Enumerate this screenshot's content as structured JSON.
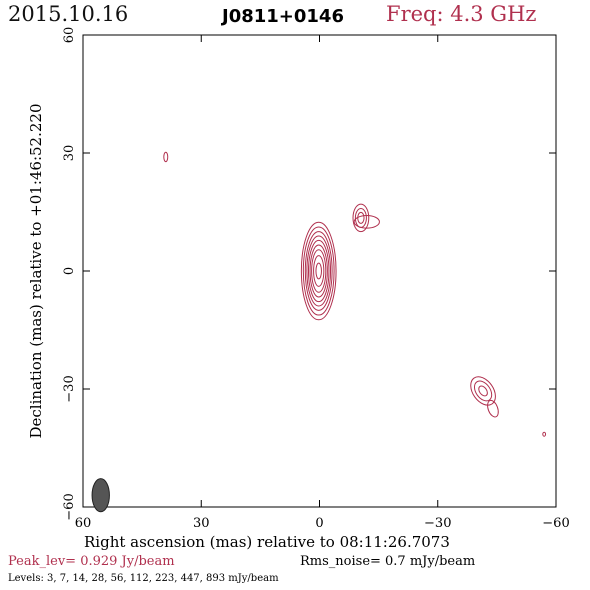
{
  "header": {
    "date": "2015.10.16",
    "source": "J0811+0146",
    "frequency": "Freq: 4.3 GHz"
  },
  "footer": {
    "peak": "Peak_lev=  0.929 Jy/beam",
    "noise": "Rms_noise=  0.7 mJy/beam",
    "levels": "Levels:   3,   7,  14,  28,  56, 112, 223, 447, 893 mJy/beam"
  },
  "colors": {
    "contour": "#b0304e",
    "beam": "#555555",
    "axes": "#000000"
  },
  "chart_data": {
    "type": "contour",
    "xlabel": "Right ascension (mas) relative to 08:11:26.7073",
    "ylabel": "Declination (mas) relative to +01:46:52.220",
    "xlim": [
      60,
      -60
    ],
    "ylim": [
      -60,
      60
    ],
    "xticks": [
      {
        "value": 60,
        "label": "60"
      },
      {
        "value": 30,
        "label": "30"
      },
      {
        "value": 0,
        "label": "0"
      },
      {
        "value": -30,
        "label": "−30"
      },
      {
        "value": -60,
        "label": "−60"
      }
    ],
    "yticks": [
      {
        "value": -60,
        "label": "−60"
      },
      {
        "value": -30,
        "label": "−30"
      },
      {
        "value": 0,
        "label": "0"
      },
      {
        "value": 30,
        "label": "30"
      },
      {
        "value": 60,
        "label": "60"
      }
    ],
    "contour_levels_mJy": [
      3,
      7,
      14,
      28,
      56,
      112,
      223,
      447,
      893
    ],
    "components": [
      {
        "x": 0.2,
        "y": 0.0,
        "rx": [
          4.4,
          3.9,
          3.4,
          3.0,
          2.6,
          2.2,
          1.8,
          1.3,
          0.7
        ],
        "ry": [
          12.4,
          11.2,
          10.0,
          8.9,
          7.8,
          6.6,
          5.4,
          3.9,
          2.0
        ],
        "angle": 0
      },
      {
        "x": -10.5,
        "y": 13.5,
        "rx": [
          2.0,
          1.4,
          0.8
        ],
        "ry": [
          3.5,
          2.4,
          1.4
        ],
        "angle": 0
      },
      {
        "x": -12.0,
        "y": 12.5,
        "rx": [
          3.2
        ],
        "ry": [
          1.6
        ],
        "angle": 0
      },
      {
        "x": -41.5,
        "y": -30.5,
        "rx": [
          2.6,
          1.8,
          0.9
        ],
        "ry": [
          4.0,
          2.8,
          1.4
        ],
        "angle": -35
      },
      {
        "x": -44.0,
        "y": -35.0,
        "rx": [
          1.2
        ],
        "ry": [
          2.2
        ],
        "angle": -20
      },
      {
        "x": 39.0,
        "y": 29.0,
        "rx": [
          0.5
        ],
        "ry": [
          1.2
        ],
        "angle": 0
      },
      {
        "x": -57.0,
        "y": -41.5,
        "rx": [
          0.35
        ],
        "ry": [
          0.5
        ],
        "angle": 0
      }
    ],
    "beam": {
      "x": 55.5,
      "y": -57.0,
      "major": 4.2,
      "minor": 2.2,
      "angle": 0
    }
  }
}
